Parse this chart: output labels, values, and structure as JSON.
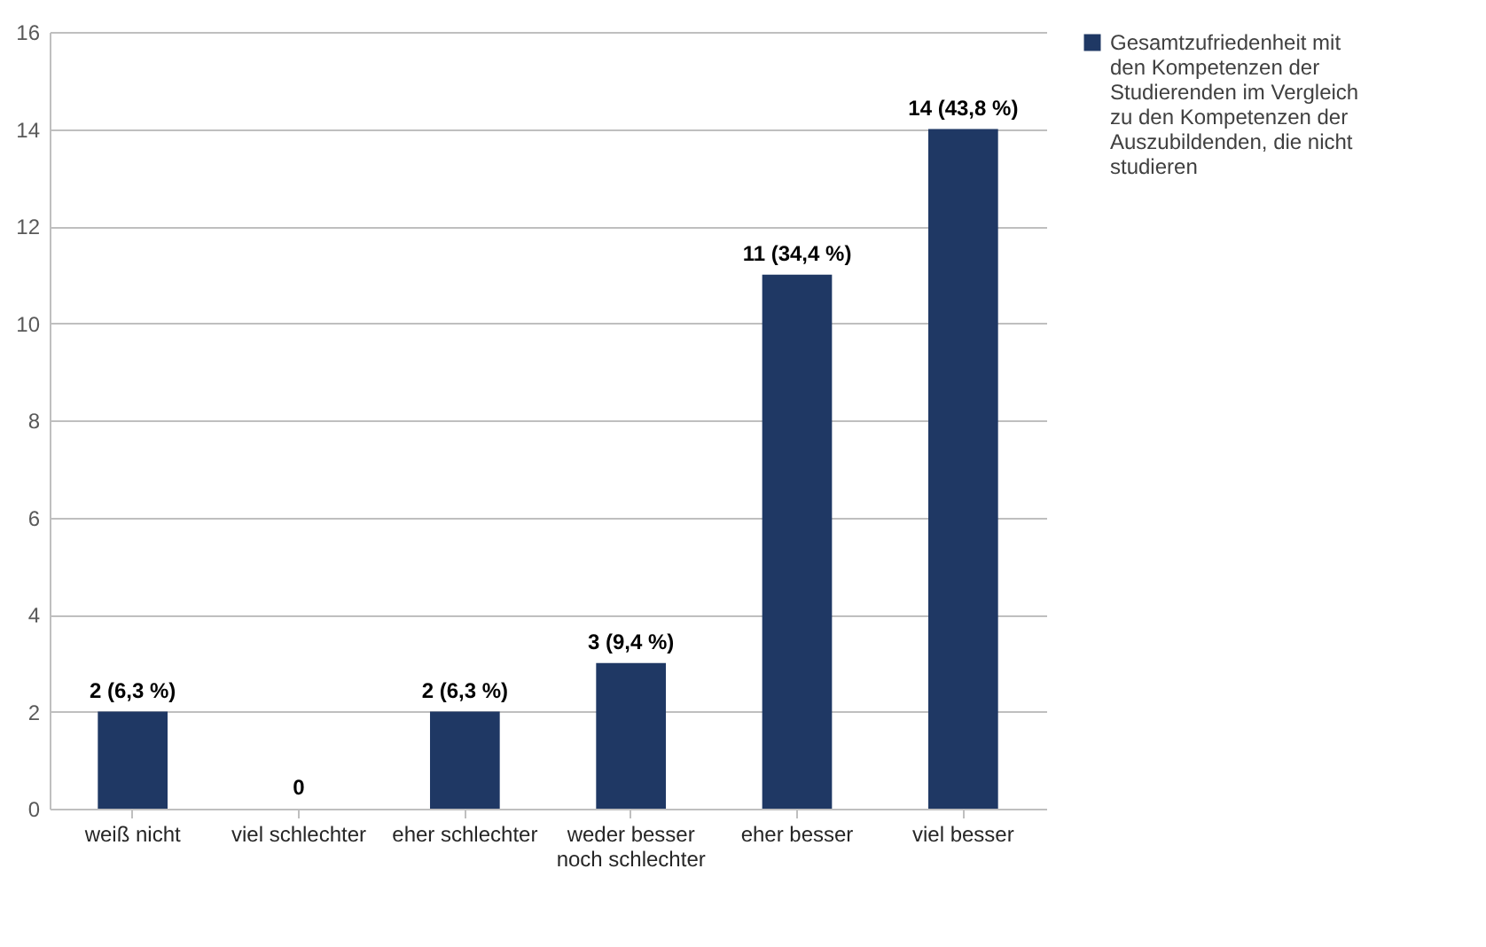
{
  "chart_data": {
    "type": "bar",
    "categories": [
      "weiß nicht",
      "viel schlechter",
      "eher schlechter",
      "weder besser noch schlechter",
      "eher besser",
      "viel besser"
    ],
    "series": [
      {
        "name": "Gesamtzufriedenheit mit den Kompetenzen der Studierenden im Vergleich zu den Kompetenzen der Auszubildenden, die nicht studieren",
        "color": "#1f3864",
        "values": [
          2,
          0,
          2,
          3,
          11,
          14
        ],
        "value_labels": [
          "2 (6,3 %)",
          "0",
          "2 (6,3 %)",
          "3 (9,4 %)",
          "11 (34,4 %)",
          "14 (43,8 %)"
        ]
      }
    ],
    "ylim": [
      0,
      16
    ],
    "yticks": [
      0,
      2,
      4,
      6,
      8,
      10,
      12,
      14,
      16
    ],
    "grid": "y",
    "legend": "right"
  }
}
